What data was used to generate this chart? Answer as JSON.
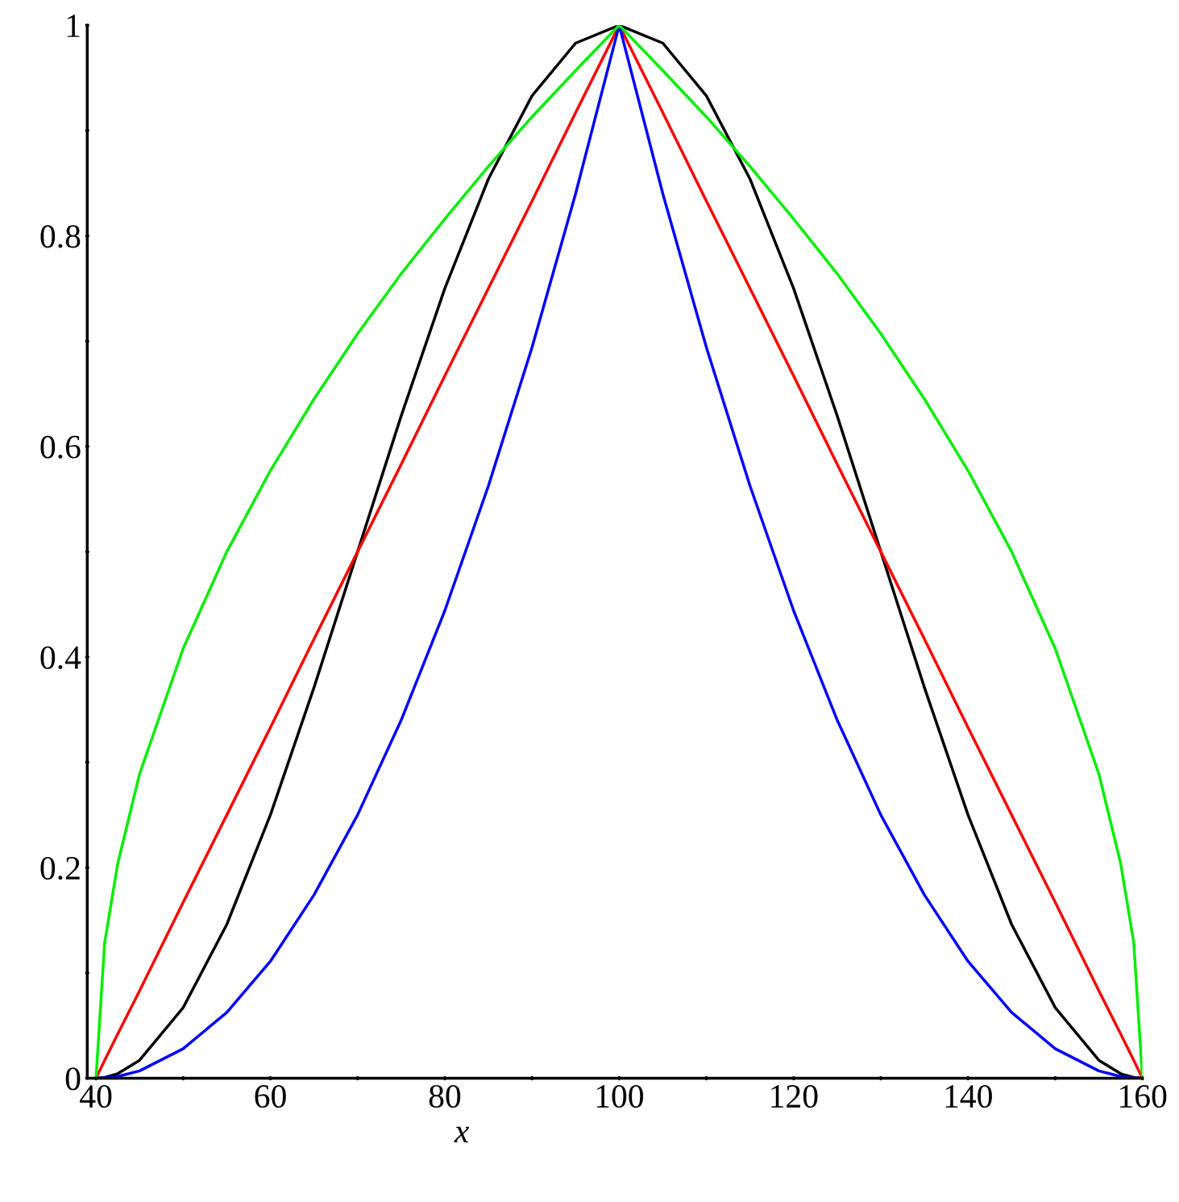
{
  "chart_data": {
    "type": "line",
    "xlabel": "x",
    "x": [
      40,
      41,
      42.5,
      45,
      50,
      55,
      60,
      65,
      70,
      75,
      80,
      85,
      90,
      95,
      100,
      105,
      110,
      115,
      120,
      125,
      130,
      135,
      140,
      145,
      150,
      155,
      157.5,
      159,
      160
    ],
    "series": [
      {
        "color": "#000000",
        "values": [
          0,
          0.0007,
          0.0043,
          0.017,
          0.067,
          0.146,
          0.25,
          0.371,
          0.5,
          0.629,
          0.75,
          0.854,
          0.933,
          0.983,
          1,
          0.983,
          0.933,
          0.854,
          0.75,
          0.629,
          0.5,
          0.371,
          0.25,
          0.146,
          0.067,
          0.017,
          0.0043,
          0.0007,
          0
        ]
      },
      {
        "color": "#ff0000",
        "values": [
          0,
          0.017,
          0.042,
          0.083,
          0.167,
          0.25,
          0.333,
          0.417,
          0.5,
          0.583,
          0.667,
          0.75,
          0.833,
          0.917,
          1,
          0.917,
          0.833,
          0.75,
          0.667,
          0.583,
          0.5,
          0.417,
          0.333,
          0.25,
          0.167,
          0.083,
          0.042,
          0.017,
          0
        ]
      },
      {
        "color": "#0000ff",
        "values": [
          0,
          0.0003,
          0.0017,
          0.0069,
          0.028,
          0.0625,
          0.111,
          0.174,
          0.25,
          0.34,
          0.444,
          0.5625,
          0.694,
          0.84,
          1,
          0.84,
          0.694,
          0.5625,
          0.444,
          0.34,
          0.25,
          0.174,
          0.111,
          0.0625,
          0.028,
          0.0069,
          0.0017,
          0.0003,
          0
        ]
      },
      {
        "color": "#00ee00",
        "values": [
          0,
          0.129,
          0.204,
          0.289,
          0.408,
          0.5,
          0.577,
          0.645,
          0.707,
          0.764,
          0.816,
          0.866,
          0.913,
          0.957,
          1,
          0.957,
          0.913,
          0.866,
          0.816,
          0.764,
          0.707,
          0.645,
          0.577,
          0.5,
          0.408,
          0.289,
          0.204,
          0.129,
          0
        ]
      }
    ],
    "xlim": [
      39,
      160
    ],
    "ylim": [
      0,
      1
    ],
    "xticks": [
      40,
      {
        "value": 50,
        "label": null
      },
      60,
      {
        "value": 70,
        "label": null
      },
      80,
      {
        "value": 90,
        "label": null
      },
      100,
      {
        "value": 110,
        "label": null
      },
      120,
      {
        "value": 130,
        "label": null
      },
      140,
      {
        "value": 150,
        "label": null
      },
      160
    ],
    "yticks": [
      {
        "value": 0,
        "label": "0"
      },
      {
        "value": 0.1,
        "label": null
      },
      0.2,
      {
        "value": 0.3,
        "label": null
      },
      0.4,
      {
        "value": 0.5,
        "label": null
      },
      0.6,
      {
        "value": 0.7,
        "label": null
      },
      0.8,
      {
        "value": 0.9,
        "label": null
      },
      {
        "value": 1,
        "label": "1"
      }
    ],
    "grid": false,
    "legend": false,
    "line_style": "solid"
  }
}
